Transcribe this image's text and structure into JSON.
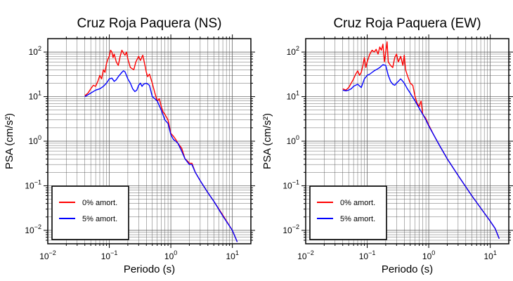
{
  "chart_data": [
    {
      "type": "line",
      "title": "Cruz Roja Paquera (NS)",
      "xlabel": "Periodo (s)",
      "ylabel": "PSA (cm/s²)",
      "xscale": "log",
      "yscale": "log",
      "xlim": [
        0.01,
        20
      ],
      "ylim": [
        0.005,
        200
      ],
      "xticks": [
        0.01,
        0.1,
        1,
        10
      ],
      "xtick_labels": [
        {
          "base": "10",
          "exp": "−2"
        },
        {
          "base": "10",
          "exp": "−1"
        },
        {
          "base": "10",
          "exp": "0"
        },
        {
          "base": "10",
          "exp": "1"
        }
      ],
      "yticks": [
        0.01,
        0.1,
        1,
        10,
        100
      ],
      "ytick_labels": [
        {
          "base": "10",
          "exp": "−2"
        },
        {
          "base": "10",
          "exp": "−1"
        },
        {
          "base": "10",
          "exp": "0"
        },
        {
          "base": "10",
          "exp": "1"
        },
        {
          "base": "10",
          "exp": "2"
        }
      ],
      "grid": true,
      "legend_position": "bottom-left",
      "series": [
        {
          "name": "0% amort.",
          "color": "#ff0000",
          "points": [
            [
              0.04,
              10.5
            ],
            [
              0.045,
              12
            ],
            [
              0.05,
              15
            ],
            [
              0.055,
              18
            ],
            [
              0.06,
              17
            ],
            [
              0.065,
              22
            ],
            [
              0.07,
              30
            ],
            [
              0.075,
              25
            ],
            [
              0.08,
              40
            ],
            [
              0.085,
              35
            ],
            [
              0.09,
              55
            ],
            [
              0.095,
              70
            ],
            [
              0.1,
              80
            ],
            [
              0.105,
              110
            ],
            [
              0.11,
              100
            ],
            [
              0.115,
              75
            ],
            [
              0.12,
              90
            ],
            [
              0.13,
              60
            ],
            [
              0.14,
              50
            ],
            [
              0.15,
              80
            ],
            [
              0.16,
              110
            ],
            [
              0.17,
              95
            ],
            [
              0.18,
              85
            ],
            [
              0.19,
              100
            ],
            [
              0.2,
              70
            ],
            [
              0.22,
              45
            ],
            [
              0.25,
              40
            ],
            [
              0.27,
              60
            ],
            [
              0.3,
              80
            ],
            [
              0.32,
              65
            ],
            [
              0.35,
              85
            ],
            [
              0.38,
              50
            ],
            [
              0.4,
              35
            ],
            [
              0.42,
              28
            ],
            [
              0.45,
              32
            ],
            [
              0.5,
              20
            ],
            [
              0.55,
              12
            ],
            [
              0.6,
              8
            ],
            [
              0.65,
              9
            ],
            [
              0.7,
              6
            ],
            [
              0.75,
              4.5
            ],
            [
              0.8,
              4
            ],
            [
              0.9,
              3
            ],
            [
              1.0,
              1.5
            ],
            [
              1.1,
              1.3
            ],
            [
              1.2,
              1.1
            ],
            [
              1.3,
              0.9
            ],
            [
              1.5,
              0.7
            ],
            [
              1.7,
              0.4
            ],
            [
              1.9,
              0.35
            ],
            [
              2.0,
              0.32
            ],
            [
              2.2,
              0.32
            ],
            [
              2.5,
              0.2
            ],
            [
              3,
              0.13
            ],
            [
              4,
              0.07
            ],
            [
              5,
              0.045
            ],
            [
              7,
              0.022
            ],
            [
              10,
              0.01
            ],
            [
              12,
              0.0055
            ]
          ]
        },
        {
          "name": "5% amort.",
          "color": "#0000ff",
          "points": [
            [
              0.04,
              10
            ],
            [
              0.045,
              11
            ],
            [
              0.05,
              12
            ],
            [
              0.055,
              13
            ],
            [
              0.06,
              14
            ],
            [
              0.065,
              14.5
            ],
            [
              0.07,
              15
            ],
            [
              0.08,
              17
            ],
            [
              0.09,
              20
            ],
            [
              0.1,
              25
            ],
            [
              0.11,
              26
            ],
            [
              0.12,
              22
            ],
            [
              0.13,
              24
            ],
            [
              0.14,
              28
            ],
            [
              0.16,
              35
            ],
            [
              0.17,
              38
            ],
            [
              0.18,
              36
            ],
            [
              0.2,
              25
            ],
            [
              0.22,
              20
            ],
            [
              0.24,
              15
            ],
            [
              0.26,
              13
            ],
            [
              0.28,
              14
            ],
            [
              0.3,
              18
            ],
            [
              0.32,
              20
            ],
            [
              0.34,
              17
            ],
            [
              0.36,
              19
            ],
            [
              0.4,
              20
            ],
            [
              0.45,
              18
            ],
            [
              0.5,
              10
            ],
            [
              0.55,
              9
            ],
            [
              0.6,
              8
            ],
            [
              0.7,
              5
            ],
            [
              0.8,
              3
            ],
            [
              0.9,
              2.5
            ],
            [
              1.0,
              1.4
            ],
            [
              1.1,
              1.1
            ],
            [
              1.2,
              1.0
            ],
            [
              1.3,
              0.9
            ],
            [
              1.5,
              0.6
            ],
            [
              1.7,
              0.4
            ],
            [
              2.0,
              0.3
            ],
            [
              2.2,
              0.3
            ],
            [
              2.5,
              0.2
            ],
            [
              3,
              0.13
            ],
            [
              4,
              0.07
            ],
            [
              5,
              0.045
            ],
            [
              7,
              0.021
            ],
            [
              10,
              0.01
            ],
            [
              12,
              0.0055
            ]
          ]
        }
      ]
    },
    {
      "type": "line",
      "title": "Cruz Roja Paquera (EW)",
      "xlabel": "Periodo (s)",
      "ylabel": "PSA (cm/s²)",
      "xscale": "log",
      "yscale": "log",
      "xlim": [
        0.01,
        20
      ],
      "ylim": [
        0.005,
        200
      ],
      "xticks": [
        0.01,
        0.1,
        1,
        10
      ],
      "xtick_labels": [
        {
          "base": "10",
          "exp": "−2"
        },
        {
          "base": "10",
          "exp": "−1"
        },
        {
          "base": "10",
          "exp": "0"
        },
        {
          "base": "10",
          "exp": "1"
        }
      ],
      "yticks": [
        0.01,
        0.1,
        1,
        10,
        100
      ],
      "ytick_labels": [
        {
          "base": "10",
          "exp": "−2"
        },
        {
          "base": "10",
          "exp": "−1"
        },
        {
          "base": "10",
          "exp": "0"
        },
        {
          "base": "10",
          "exp": "1"
        },
        {
          "base": "10",
          "exp": "2"
        }
      ],
      "grid": true,
      "legend_position": "bottom-left",
      "series": [
        {
          "name": "0% amort.",
          "color": "#ff0000",
          "points": [
            [
              0.04,
              15
            ],
            [
              0.045,
              14
            ],
            [
              0.05,
              16
            ],
            [
              0.055,
              20
            ],
            [
              0.06,
              25
            ],
            [
              0.065,
              32
            ],
            [
              0.07,
              38
            ],
            [
              0.075,
              30
            ],
            [
              0.08,
              35
            ],
            [
              0.085,
              50
            ],
            [
              0.09,
              75
            ],
            [
              0.095,
              45
            ],
            [
              0.1,
              60
            ],
            [
              0.11,
              90
            ],
            [
              0.12,
              110
            ],
            [
              0.13,
              100
            ],
            [
              0.14,
              115
            ],
            [
              0.15,
              90
            ],
            [
              0.16,
              130
            ],
            [
              0.17,
              110
            ],
            [
              0.18,
              150
            ],
            [
              0.19,
              60
            ],
            [
              0.2,
              100
            ],
            [
              0.21,
              170
            ],
            [
              0.22,
              60
            ],
            [
              0.24,
              50
            ],
            [
              0.26,
              45
            ],
            [
              0.28,
              75
            ],
            [
              0.3,
              90
            ],
            [
              0.32,
              60
            ],
            [
              0.35,
              80
            ],
            [
              0.38,
              50
            ],
            [
              0.4,
              85
            ],
            [
              0.42,
              40
            ],
            [
              0.45,
              30
            ],
            [
              0.5,
              20
            ],
            [
              0.55,
              18
            ],
            [
              0.6,
              10
            ],
            [
              0.65,
              7
            ],
            [
              0.7,
              6
            ],
            [
              0.75,
              8
            ],
            [
              0.8,
              4
            ],
            [
              0.9,
              3.2
            ],
            [
              1.0,
              2.3
            ],
            [
              1.2,
              1.4
            ],
            [
              1.5,
              0.8
            ],
            [
              2,
              0.4
            ],
            [
              3,
              0.17
            ],
            [
              5,
              0.06
            ],
            [
              10,
              0.016
            ],
            [
              12,
              0.011
            ],
            [
              14,
              0.0065
            ]
          ]
        },
        {
          "name": "5% amort.",
          "color": "#0000ff",
          "points": [
            [
              0.04,
              14
            ],
            [
              0.045,
              13.5
            ],
            [
              0.05,
              14
            ],
            [
              0.055,
              15
            ],
            [
              0.06,
              17
            ],
            [
              0.07,
              19
            ],
            [
              0.08,
              16
            ],
            [
              0.09,
              25
            ],
            [
              0.1,
              30
            ],
            [
              0.11,
              32
            ],
            [
              0.12,
              35
            ],
            [
              0.13,
              38
            ],
            [
              0.14,
              40
            ],
            [
              0.16,
              45
            ],
            [
              0.18,
              52
            ],
            [
              0.2,
              50
            ],
            [
              0.22,
              30
            ],
            [
              0.24,
              22
            ],
            [
              0.26,
              19
            ],
            [
              0.28,
              18
            ],
            [
              0.3,
              20
            ],
            [
              0.32,
              22
            ],
            [
              0.35,
              25
            ],
            [
              0.38,
              22
            ],
            [
              0.4,
              20
            ],
            [
              0.45,
              15
            ],
            [
              0.5,
              12
            ],
            [
              0.6,
              8
            ],
            [
              0.7,
              5.5
            ],
            [
              0.8,
              4
            ],
            [
              0.9,
              3
            ],
            [
              1.0,
              2.2
            ],
            [
              1.2,
              1.4
            ],
            [
              1.5,
              0.8
            ],
            [
              2,
              0.4
            ],
            [
              3,
              0.17
            ],
            [
              5,
              0.06
            ],
            [
              10,
              0.016
            ],
            [
              12,
              0.011
            ],
            [
              14,
              0.0065
            ]
          ]
        }
      ]
    }
  ]
}
